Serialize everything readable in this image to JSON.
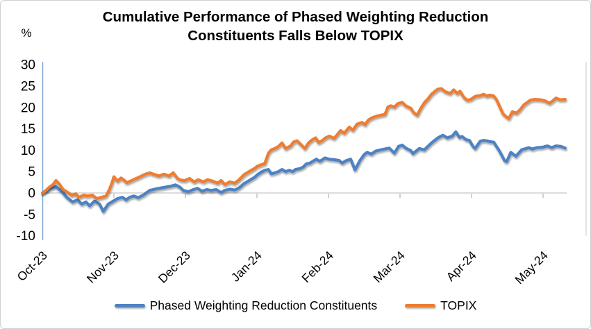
{
  "chart": {
    "title_lines": [
      "Cumulative Performance of Phased Weighting Reduction",
      "Constituents Falls Below TOPIX"
    ],
    "unit_label": "%",
    "legend": [
      {
        "label": "Phased Weighting Reduction Constituents",
        "color": "#4d82c3"
      },
      {
        "label": "TOPIX",
        "color": "#ed7d31"
      }
    ]
  },
  "chart_data": {
    "type": "line",
    "title": "Cumulative Performance of Phased Weighting Reduction Constituents Falls Below TOPIX",
    "xlabel": "",
    "ylabel": "%",
    "x_ticks": [
      "Oct-23",
      "Nov-23",
      "Dec-23",
      "Jan-24",
      "Feb-24",
      "Mar-24",
      "Apr-24",
      "May-24"
    ],
    "x_unit": "months, t=0 at Oct-23 tick, 1.0 per month, data ends t=7.31 (mid May-24)",
    "y_ticks": [
      30,
      25,
      20,
      15,
      10,
      5,
      0,
      -5,
      -10
    ],
    "ylim": [
      -10,
      30
    ],
    "grid": "single horizontal gridline at 0 with downward month tick marks",
    "legend_position": "bottom",
    "axis_colors": {
      "y_axis_line": "#7fa8d4",
      "zero_gridline": "#dcdcdc",
      "tick_marks": "#c0c0c0",
      "right_border": "#dadada"
    },
    "series": [
      {
        "name": "Phased Weighting Reduction Constituents",
        "color": "#4d82c3",
        "points": [
          [
            0.0,
            0.0
          ],
          [
            0.05,
            0.4
          ],
          [
            0.1,
            1.0
          ],
          [
            0.15,
            1.3
          ],
          [
            0.19,
            1.5
          ],
          [
            0.24,
            0.8
          ],
          [
            0.29,
            0.0
          ],
          [
            0.34,
            -1.0
          ],
          [
            0.42,
            -2.1
          ],
          [
            0.49,
            -1.6
          ],
          [
            0.55,
            -2.6
          ],
          [
            0.61,
            -2.1
          ],
          [
            0.66,
            -3.0
          ],
          [
            0.73,
            -1.9
          ],
          [
            0.8,
            -2.6
          ],
          [
            0.85,
            -4.3
          ],
          [
            0.92,
            -2.6
          ],
          [
            0.99,
            -1.9
          ],
          [
            1.05,
            -1.3
          ],
          [
            1.12,
            -1.0
          ],
          [
            1.17,
            -1.6
          ],
          [
            1.22,
            -1.0
          ],
          [
            1.28,
            -0.7
          ],
          [
            1.34,
            -1.1
          ],
          [
            1.41,
            -0.5
          ],
          [
            1.5,
            0.6
          ],
          [
            1.6,
            1.0
          ],
          [
            1.7,
            1.3
          ],
          [
            1.8,
            1.6
          ],
          [
            1.86,
            1.9
          ],
          [
            1.92,
            1.4
          ],
          [
            1.97,
            0.6
          ],
          [
            2.04,
            0.3
          ],
          [
            2.11,
            0.8
          ],
          [
            2.17,
            1.1
          ],
          [
            2.23,
            0.4
          ],
          [
            2.3,
            0.8
          ],
          [
            2.36,
            0.6
          ],
          [
            2.43,
            0.8
          ],
          [
            2.5,
            0.1
          ],
          [
            2.55,
            0.6
          ],
          [
            2.62,
            0.9
          ],
          [
            2.69,
            0.7
          ],
          [
            2.75,
            1.2
          ],
          [
            2.82,
            2.2
          ],
          [
            2.88,
            2.8
          ],
          [
            2.96,
            3.6
          ],
          [
            3.01,
            4.3
          ],
          [
            3.06,
            4.9
          ],
          [
            3.11,
            5.3
          ],
          [
            3.16,
            5.5
          ],
          [
            3.2,
            4.5
          ],
          [
            3.25,
            4.7
          ],
          [
            3.3,
            5.0
          ],
          [
            3.35,
            5.5
          ],
          [
            3.4,
            5.0
          ],
          [
            3.45,
            5.3
          ],
          [
            3.5,
            5.0
          ],
          [
            3.54,
            5.5
          ],
          [
            3.6,
            5.7
          ],
          [
            3.65,
            6.1
          ],
          [
            3.69,
            6.8
          ],
          [
            3.74,
            7.0
          ],
          [
            3.79,
            7.5
          ],
          [
            3.83,
            7.9
          ],
          [
            3.88,
            7.4
          ],
          [
            3.95,
            8.2
          ],
          [
            4.01,
            7.9
          ],
          [
            4.08,
            7.8
          ],
          [
            4.15,
            7.6
          ],
          [
            4.19,
            7.0
          ],
          [
            4.25,
            7.6
          ],
          [
            4.31,
            7.9
          ],
          [
            4.37,
            5.4
          ],
          [
            4.44,
            7.6
          ],
          [
            4.5,
            9.0
          ],
          [
            4.54,
            9.5
          ],
          [
            4.6,
            9.1
          ],
          [
            4.66,
            9.8
          ],
          [
            4.73,
            10.1
          ],
          [
            4.79,
            10.3
          ],
          [
            4.85,
            10.5
          ],
          [
            4.92,
            9.3
          ],
          [
            4.98,
            10.9
          ],
          [
            5.03,
            11.2
          ],
          [
            5.08,
            10.5
          ],
          [
            5.15,
            9.9
          ],
          [
            5.18,
            9.2
          ],
          [
            5.27,
            10.4
          ],
          [
            5.34,
            10.1
          ],
          [
            5.44,
            11.7
          ],
          [
            5.53,
            12.9
          ],
          [
            5.6,
            13.5
          ],
          [
            5.66,
            12.9
          ],
          [
            5.73,
            13.3
          ],
          [
            5.78,
            14.3
          ],
          [
            5.83,
            13.0
          ],
          [
            5.87,
            13.2
          ],
          [
            5.92,
            12.5
          ],
          [
            5.97,
            12.3
          ],
          [
            6.02,
            10.9
          ],
          [
            6.05,
            10.4
          ],
          [
            6.12,
            12.1
          ],
          [
            6.17,
            12.3
          ],
          [
            6.21,
            12.2
          ],
          [
            6.26,
            12.0
          ],
          [
            6.31,
            11.9
          ],
          [
            6.39,
            9.8
          ],
          [
            6.46,
            7.6
          ],
          [
            6.49,
            7.3
          ],
          [
            6.55,
            9.5
          ],
          [
            6.62,
            8.6
          ],
          [
            6.7,
            10.1
          ],
          [
            6.8,
            10.6
          ],
          [
            6.85,
            10.3
          ],
          [
            6.91,
            10.6
          ],
          [
            6.99,
            10.7
          ],
          [
            7.06,
            11.0
          ],
          [
            7.12,
            10.6
          ],
          [
            7.18,
            11.0
          ],
          [
            7.25,
            10.9
          ],
          [
            7.31,
            10.5
          ]
        ]
      },
      {
        "name": "TOPIX",
        "color": "#ed7d31",
        "points": [
          [
            0.0,
            0.0
          ],
          [
            0.05,
            0.6
          ],
          [
            0.1,
            1.4
          ],
          [
            0.15,
            2.0
          ],
          [
            0.19,
            2.9
          ],
          [
            0.24,
            2.0
          ],
          [
            0.29,
            0.8
          ],
          [
            0.34,
            0.3
          ],
          [
            0.41,
            -0.5
          ],
          [
            0.47,
            -0.2
          ],
          [
            0.51,
            -1.0
          ],
          [
            0.58,
            -0.5
          ],
          [
            0.63,
            -0.7
          ],
          [
            0.7,
            -0.5
          ],
          [
            0.76,
            -1.3
          ],
          [
            0.83,
            -1.0
          ],
          [
            0.89,
            -0.7
          ],
          [
            0.94,
            0.9
          ],
          [
            0.97,
            2.2
          ],
          [
            1.0,
            3.8
          ],
          [
            1.05,
            2.8
          ],
          [
            1.1,
            3.5
          ],
          [
            1.15,
            2.9
          ],
          [
            1.18,
            2.4
          ],
          [
            1.26,
            3.0
          ],
          [
            1.34,
            3.6
          ],
          [
            1.44,
            4.4
          ],
          [
            1.5,
            4.7
          ],
          [
            1.57,
            4.3
          ],
          [
            1.63,
            4.0
          ],
          [
            1.7,
            4.4
          ],
          [
            1.77,
            4.0
          ],
          [
            1.83,
            4.7
          ],
          [
            1.89,
            3.4
          ],
          [
            1.94,
            3.0
          ],
          [
            1.99,
            2.9
          ],
          [
            2.06,
            3.4
          ],
          [
            2.12,
            2.6
          ],
          [
            2.18,
            3.1
          ],
          [
            2.25,
            2.6
          ],
          [
            2.31,
            3.1
          ],
          [
            2.38,
            2.8
          ],
          [
            2.45,
            2.3
          ],
          [
            2.5,
            2.9
          ],
          [
            2.55,
            2.0
          ],
          [
            2.62,
            2.6
          ],
          [
            2.69,
            2.3
          ],
          [
            2.75,
            3.1
          ],
          [
            2.82,
            4.3
          ],
          [
            2.88,
            4.9
          ],
          [
            2.96,
            5.7
          ],
          [
            3.01,
            6.3
          ],
          [
            3.06,
            6.6
          ],
          [
            3.11,
            6.9
          ],
          [
            3.16,
            9.3
          ],
          [
            3.2,
            10.1
          ],
          [
            3.25,
            10.4
          ],
          [
            3.3,
            10.9
          ],
          [
            3.35,
            11.7
          ],
          [
            3.4,
            10.4
          ],
          [
            3.47,
            11.0
          ],
          [
            3.51,
            11.9
          ],
          [
            3.56,
            12.2
          ],
          [
            3.61,
            11.4
          ],
          [
            3.67,
            10.4
          ],
          [
            3.72,
            11.7
          ],
          [
            3.77,
            12.4
          ],
          [
            3.82,
            12.9
          ],
          [
            3.86,
            11.8
          ],
          [
            3.91,
            12.2
          ],
          [
            3.96,
            12.9
          ],
          [
            4.01,
            13.3
          ],
          [
            4.08,
            12.8
          ],
          [
            4.13,
            13.8
          ],
          [
            4.17,
            14.6
          ],
          [
            4.22,
            14.0
          ],
          [
            4.29,
            15.4
          ],
          [
            4.34,
            14.7
          ],
          [
            4.4,
            16.1
          ],
          [
            4.47,
            16.5
          ],
          [
            4.51,
            16.0
          ],
          [
            4.56,
            17.1
          ],
          [
            4.61,
            17.6
          ],
          [
            4.66,
            17.9
          ],
          [
            4.73,
            18.2
          ],
          [
            4.79,
            18.4
          ],
          [
            4.83,
            20.1
          ],
          [
            4.87,
            20.4
          ],
          [
            4.92,
            20.1
          ],
          [
            4.97,
            20.9
          ],
          [
            5.03,
            21.2
          ],
          [
            5.08,
            20.4
          ],
          [
            5.15,
            19.8
          ],
          [
            5.19,
            18.8
          ],
          [
            5.24,
            18.2
          ],
          [
            5.29,
            19.8
          ],
          [
            5.34,
            21.1
          ],
          [
            5.39,
            22.0
          ],
          [
            5.44,
            23.1
          ],
          [
            5.49,
            23.8
          ],
          [
            5.53,
            24.3
          ],
          [
            5.58,
            24.4
          ],
          [
            5.63,
            23.7
          ],
          [
            5.7,
            23.3
          ],
          [
            5.75,
            24.1
          ],
          [
            5.8,
            23.3
          ],
          [
            5.84,
            23.8
          ],
          [
            5.89,
            22.4
          ],
          [
            5.94,
            21.7
          ],
          [
            5.99,
            21.9
          ],
          [
            6.05,
            22.6
          ],
          [
            6.12,
            22.8
          ],
          [
            6.17,
            23.1
          ],
          [
            6.21,
            22.7
          ],
          [
            6.26,
            22.9
          ],
          [
            6.31,
            22.7
          ],
          [
            6.35,
            21.8
          ],
          [
            6.39,
            20.3
          ],
          [
            6.44,
            18.5
          ],
          [
            6.48,
            17.9
          ],
          [
            6.52,
            17.4
          ],
          [
            6.57,
            19.0
          ],
          [
            6.63,
            18.7
          ],
          [
            6.68,
            19.5
          ],
          [
            6.73,
            20.6
          ],
          [
            6.78,
            21.2
          ],
          [
            6.82,
            21.7
          ],
          [
            6.89,
            21.9
          ],
          [
            6.96,
            21.8
          ],
          [
            7.02,
            21.6
          ],
          [
            7.09,
            21.0
          ],
          [
            7.14,
            21.6
          ],
          [
            7.18,
            22.2
          ],
          [
            7.24,
            21.8
          ],
          [
            7.31,
            21.9
          ]
        ]
      }
    ]
  }
}
